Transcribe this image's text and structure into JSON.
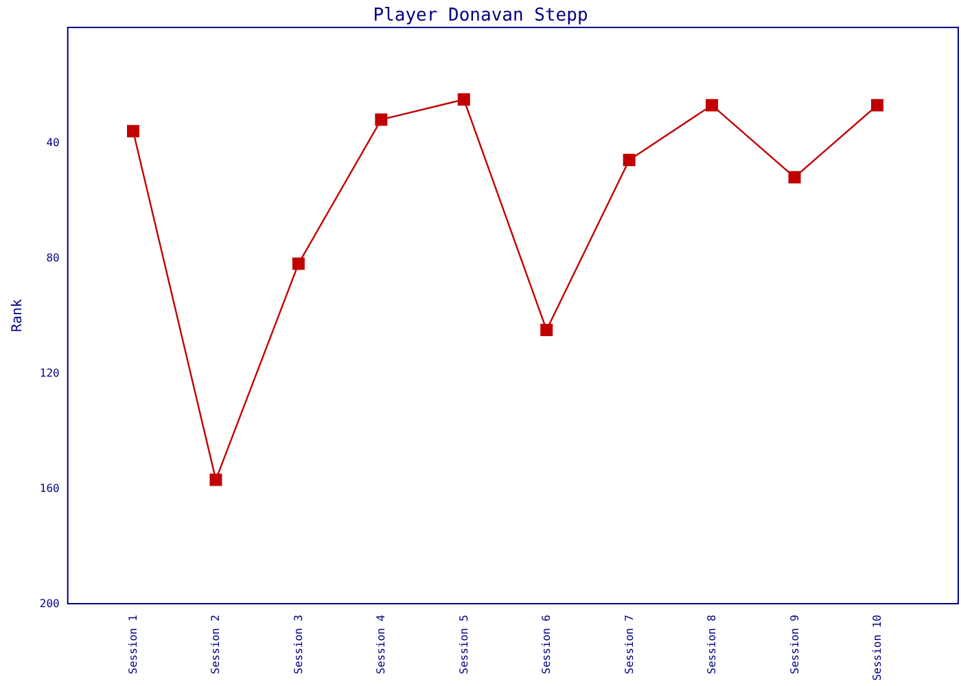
{
  "chart_data": {
    "type": "line",
    "title": "Player Donavan Stepp",
    "ylabel": "Rank",
    "categories": [
      "Session 1",
      "Session 2",
      "Session 3",
      "Session 4",
      "Session 5",
      "Session 6",
      "Session 7",
      "Session 8",
      "Session 9",
      "Session 10"
    ],
    "series": [
      {
        "color": "#c00000",
        "values": [
          36,
          157,
          82,
          32,
          25,
          105,
          46,
          27,
          52,
          27
        ]
      }
    ],
    "ylim": [
      200,
      0
    ],
    "yticks": [
      40,
      80,
      120,
      160,
      200
    ],
    "grid": false,
    "marker": "square",
    "line_style": "solid"
  }
}
